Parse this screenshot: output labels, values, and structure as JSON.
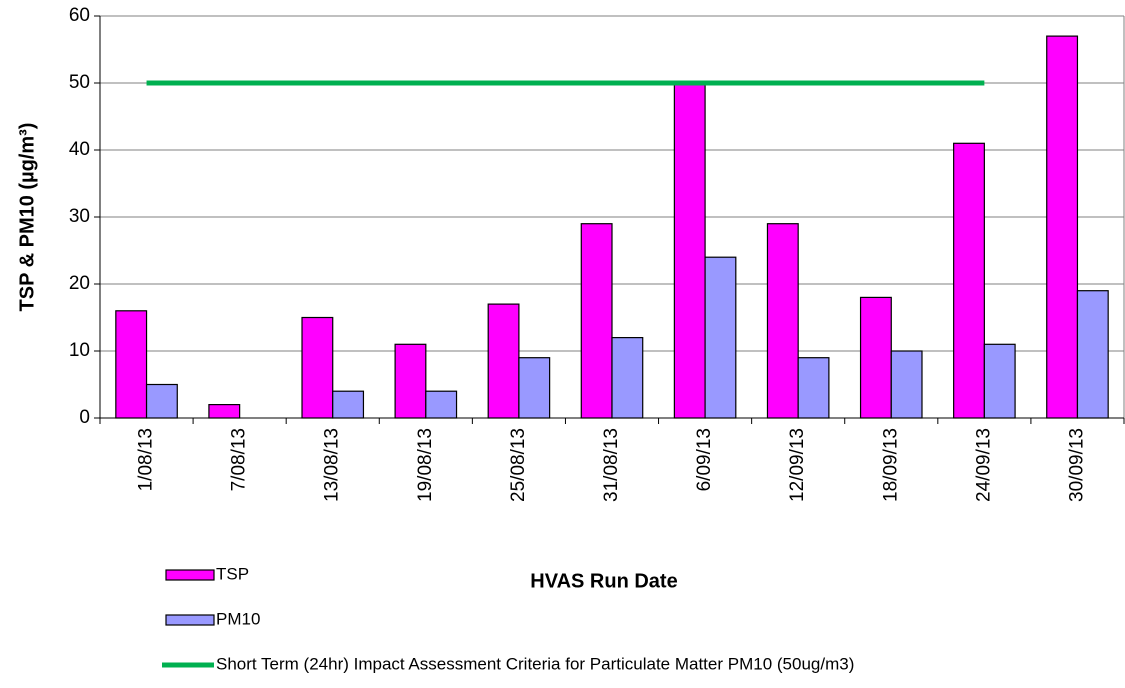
{
  "chart_data": {
    "type": "bar",
    "ylabel": "TSP & PM10 (µg/m³)",
    "xlabel": "HVAS Run Date",
    "categories": [
      "1/08/13",
      "7/08/13",
      "13/08/13",
      "19/08/13",
      "25/08/13",
      "31/08/13",
      "6/09/13",
      "12/09/13",
      "18/09/13",
      "24/09/13",
      "30/09/13"
    ],
    "series": [
      {
        "name": "TSP",
        "type": "bar",
        "color": "#ff00ff",
        "values": [
          16,
          2,
          15,
          11,
          17,
          29,
          50,
          29,
          18,
          41,
          57
        ]
      },
      {
        "name": "PM10",
        "type": "bar",
        "color": "#9999ff",
        "values": [
          5,
          null,
          4,
          4,
          9,
          12,
          24,
          9,
          10,
          11,
          19
        ]
      },
      {
        "name": "Short Term (24hr) Impact Assessment Criteria for Particulate Matter PM10 (50ug/m3)",
        "type": "line",
        "color": "#00b050",
        "values": [
          50,
          50,
          50,
          50,
          50,
          50,
          50,
          50,
          50,
          50,
          null
        ]
      }
    ],
    "ylim": [
      0,
      60
    ],
    "yticks": [
      0,
      10,
      20,
      30,
      40,
      50,
      60
    ],
    "grid": true,
    "legend": "bottom-left"
  }
}
